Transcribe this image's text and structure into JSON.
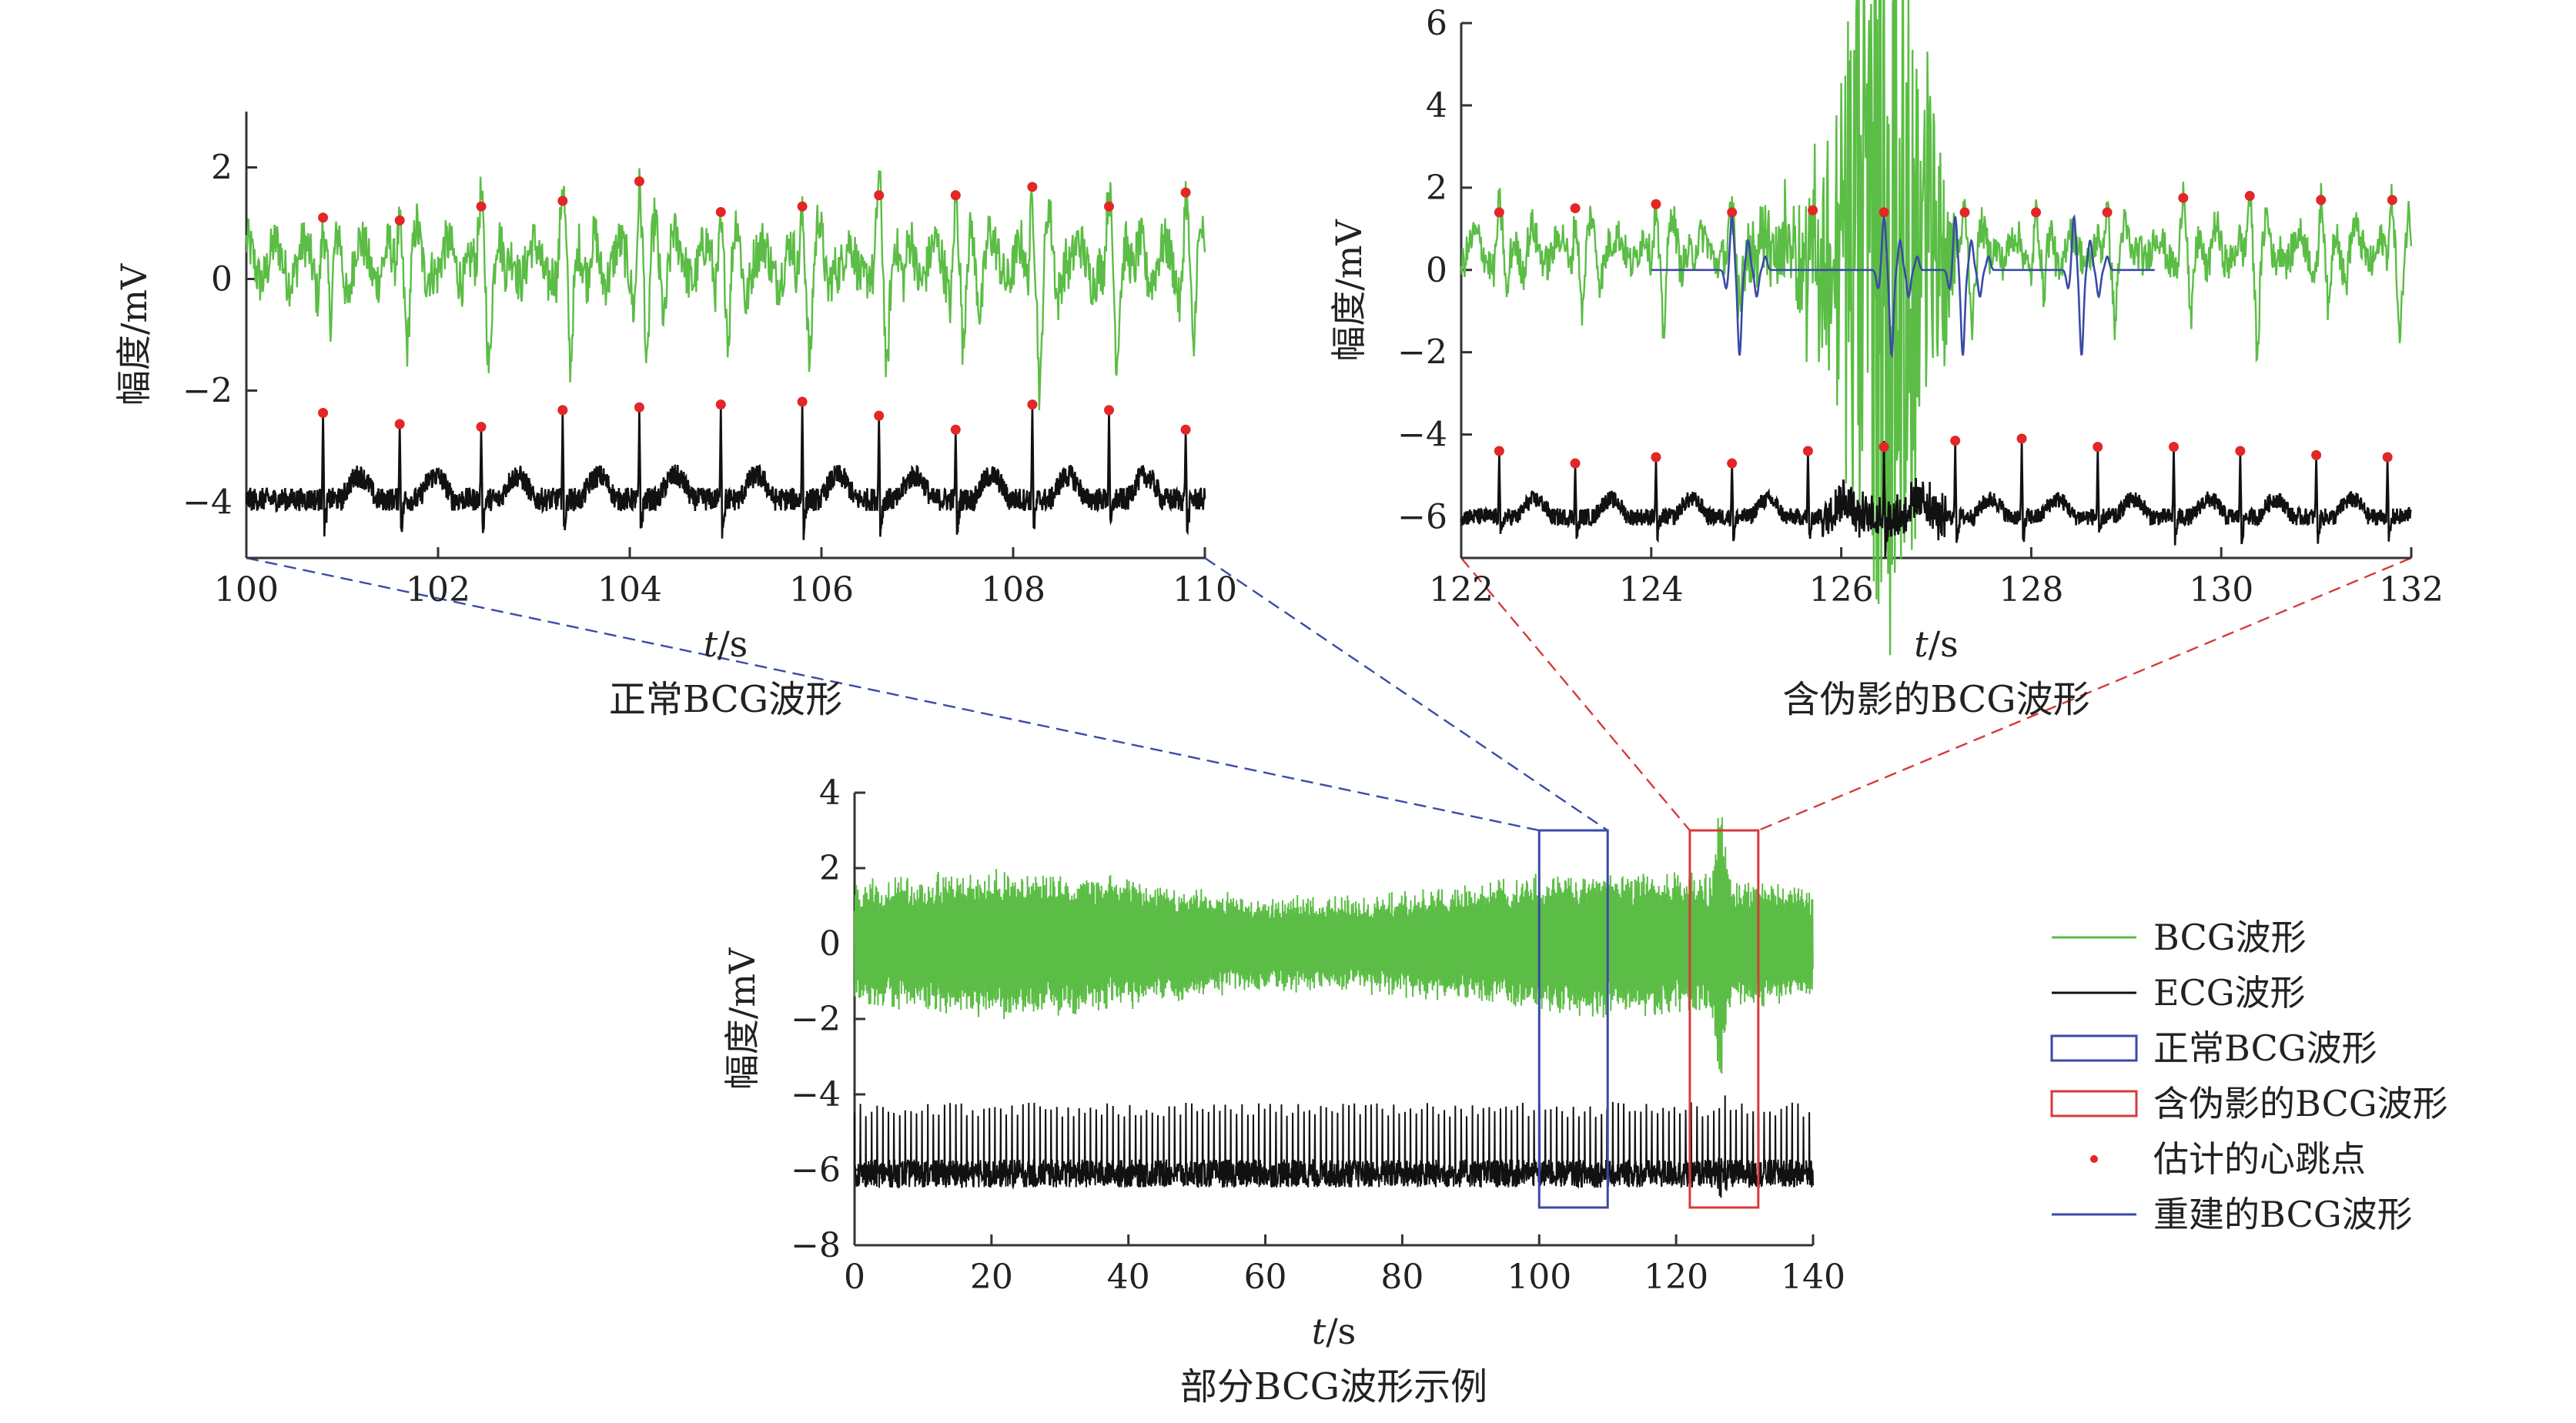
{
  "colors": {
    "bcg": "#5bbd45",
    "ecg": "#111111",
    "normal_box": "#3a4aa6",
    "artifact_box": "#d63b3b",
    "beat_marker": "#e32626",
    "recon": "#3a4aa6",
    "axis": "#333333"
  },
  "chart_data": [
    {
      "id": "normal",
      "type": "line",
      "caption": "正常BCG波形",
      "xlabel_italic": "t",
      "xlabel_unit": "/s",
      "ylabel": "幅度/mV",
      "xlim": [
        100,
        110
      ],
      "ylim": [
        -5,
        3
      ],
      "x_ticks": [
        100,
        102,
        104,
        106,
        108,
        110
      ],
      "y_ticks": [
        2,
        0,
        -2,
        -4
      ],
      "series": [
        {
          "key": "bcg",
          "baseline": 0.3,
          "amp": 0.75,
          "beats": [
            100.8,
            101.6,
            102.45,
            103.3,
            104.1,
            104.95,
            105.8,
            106.6,
            107.4,
            108.2,
            109.0,
            109.8
          ],
          "peaks": [
            1.1,
            1.05,
            1.3,
            1.4,
            1.75,
            1.2,
            1.3,
            1.5,
            1.5,
            1.65,
            1.3,
            1.55
          ]
        },
        {
          "key": "ecg",
          "baseline": -3.95,
          "beats": [
            100.8,
            101.6,
            102.45,
            103.3,
            104.1,
            104.95,
            105.8,
            106.6,
            107.4,
            108.2,
            109.0,
            109.8
          ],
          "peaks": [
            -2.4,
            -2.6,
            -2.65,
            -2.35,
            -2.3,
            -2.25,
            -2.2,
            -2.45,
            -2.7,
            -2.25,
            -2.35,
            -2.7
          ]
        }
      ]
    },
    {
      "id": "artifact",
      "type": "line",
      "caption": "含伪影的BCG波形",
      "xlabel_italic": "t",
      "xlabel_unit": "/s",
      "ylabel": "幅度/mV",
      "xlim": [
        122,
        132
      ],
      "ylim": [
        -7,
        6
      ],
      "x_ticks": [
        122,
        124,
        126,
        128,
        130,
        132
      ],
      "y_ticks": [
        6,
        4,
        2,
        0,
        -2,
        -4,
        -6
      ],
      "series": [
        {
          "key": "bcg",
          "baseline": 0.5,
          "amp": 0.75,
          "artifact_range": [
            124.8,
            127.2
          ],
          "artifact_peak": 5.8,
          "beats": [
            122.4,
            123.2,
            124.05,
            124.85,
            125.7,
            126.45,
            127.3,
            128.05,
            128.8,
            129.6,
            130.3,
            131.05,
            131.8
          ],
          "peaks": [
            1.4,
            1.5,
            1.6,
            1.4,
            1.45,
            1.4,
            1.4,
            1.4,
            1.4,
            1.75,
            1.8,
            1.7,
            1.7
          ]
        },
        {
          "key": "ecg",
          "baseline": -6.0,
          "beats": [
            122.4,
            123.2,
            124.05,
            124.85,
            125.65,
            126.45,
            127.2,
            127.9,
            128.7,
            129.5,
            130.2,
            131.0,
            131.75
          ],
          "peaks": [
            -4.4,
            -4.7,
            -4.55,
            -4.7,
            -4.4,
            -4.3,
            -4.15,
            -4.1,
            -4.3,
            -4.3,
            -4.4,
            -4.5,
            -4.55
          ]
        },
        {
          "key": "recon",
          "x_range": [
            124.0,
            129.3
          ],
          "beats": [
            124.85,
            126.45,
            127.2,
            128.45
          ]
        }
      ]
    },
    {
      "id": "overview",
      "type": "line",
      "caption": "部分BCG波形示例",
      "xlabel_italic": "t",
      "xlabel_unit": "/s",
      "ylabel": "幅度/mV",
      "xlim": [
        0,
        140
      ],
      "ylim": [
        -8,
        4
      ],
      "x_ticks": [
        0,
        20,
        40,
        60,
        80,
        100,
        120,
        140
      ],
      "y_ticks": [
        4,
        2,
        0,
        -2,
        -4,
        -6,
        -8
      ],
      "zoom_boxes": [
        {
          "key": "normal",
          "x": [
            100,
            110
          ],
          "y": [
            -7,
            3
          ]
        },
        {
          "key": "artifact",
          "x": [
            122,
            132
          ],
          "y": [
            -7,
            3
          ]
        }
      ]
    }
  ],
  "legend": [
    {
      "key": "bcg",
      "label": "BCG波形",
      "kind": "line"
    },
    {
      "key": "ecg",
      "label": "ECG波形",
      "kind": "line"
    },
    {
      "key": "normal_box",
      "label": "正常BCG波形",
      "kind": "box"
    },
    {
      "key": "artifact_box",
      "label": "含伪影的BCG波形",
      "kind": "box"
    },
    {
      "key": "beat_marker",
      "label": "估计的心跳点",
      "kind": "dot"
    },
    {
      "key": "recon",
      "label": "重建的BCG波形",
      "kind": "line"
    }
  ]
}
